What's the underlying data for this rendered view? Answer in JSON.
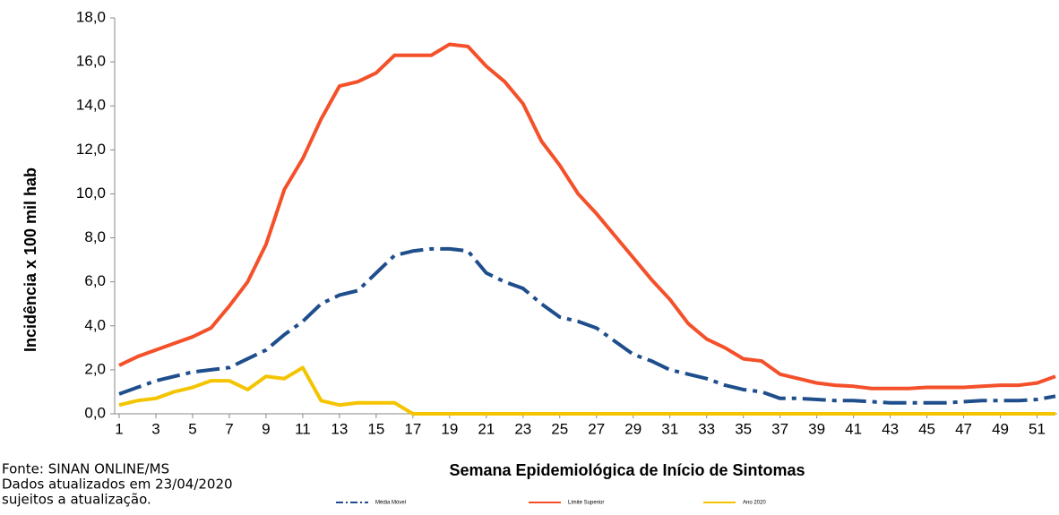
{
  "chart_data": {
    "type": "line",
    "x_label": "Semana Epidemiológica de Início de Sintomas",
    "y_label": "Incidência x 100 mil hab",
    "x": [
      1,
      2,
      3,
      4,
      5,
      6,
      7,
      8,
      9,
      10,
      11,
      12,
      13,
      14,
      15,
      16,
      17,
      18,
      19,
      20,
      21,
      22,
      23,
      24,
      25,
      26,
      27,
      28,
      29,
      30,
      31,
      32,
      33,
      34,
      35,
      36,
      37,
      38,
      39,
      40,
      41,
      42,
      43,
      44,
      45,
      46,
      47,
      48,
      49,
      50,
      51,
      52
    ],
    "xlim": [
      1,
      52
    ],
    "xticks": [
      1,
      3,
      5,
      7,
      9,
      11,
      13,
      15,
      17,
      19,
      21,
      23,
      25,
      27,
      29,
      31,
      33,
      35,
      37,
      39,
      41,
      43,
      45,
      47,
      49,
      51
    ],
    "ylim": [
      0,
      18
    ],
    "yticks": [
      {
        "value": 0,
        "label": "0,0"
      },
      {
        "value": 2,
        "label": "2,0"
      },
      {
        "value": 4,
        "label": "4,0"
      },
      {
        "value": 6,
        "label": "6,0"
      },
      {
        "value": 8,
        "label": "8,0"
      },
      {
        "value": 10,
        "label": "10,0"
      },
      {
        "value": 12,
        "label": "12,0"
      },
      {
        "value": 14,
        "label": "14,0"
      },
      {
        "value": 16,
        "label": "16,0"
      },
      {
        "value": 18,
        "label": "18,0"
      }
    ],
    "grid": false,
    "series": [
      {
        "name": "Média Móvel",
        "color": "#1f4e8c",
        "dashed": true,
        "values": [
          0.9,
          1.2,
          1.5,
          1.7,
          1.9,
          2.0,
          2.1,
          2.5,
          2.9,
          3.6,
          4.2,
          5.0,
          5.4,
          5.6,
          6.4,
          7.2,
          7.4,
          7.5,
          7.5,
          7.4,
          6.4,
          6.0,
          5.7,
          5.0,
          4.4,
          4.2,
          3.9,
          3.3,
          2.7,
          2.4,
          2.0,
          1.8,
          1.6,
          1.3,
          1.1,
          1.0,
          0.7,
          0.7,
          0.65,
          0.6,
          0.6,
          0.55,
          0.5,
          0.5,
          0.5,
          0.5,
          0.55,
          0.6,
          0.6,
          0.6,
          0.65,
          0.8
        ]
      },
      {
        "name": "Limite Superior",
        "color": "#f4502a",
        "dashed": false,
        "values": [
          2.2,
          2.6,
          2.9,
          3.2,
          3.5,
          3.9,
          4.9,
          6.0,
          7.7,
          10.2,
          11.6,
          13.4,
          14.9,
          15.1,
          15.5,
          16.3,
          16.3,
          16.3,
          16.8,
          16.7,
          15.8,
          15.1,
          14.1,
          12.4,
          11.3,
          10.0,
          9.1,
          8.1,
          7.1,
          6.1,
          5.2,
          4.1,
          3.4,
          3.0,
          2.5,
          2.4,
          1.8,
          1.6,
          1.4,
          1.3,
          1.25,
          1.15,
          1.15,
          1.15,
          1.2,
          1.2,
          1.2,
          1.25,
          1.3,
          1.3,
          1.4,
          1.7
        ]
      },
      {
        "name": "Ano 2020",
        "color": "#f5c400",
        "dashed": false,
        "values": [
          0.4,
          0.6,
          0.7,
          1.0,
          1.2,
          1.5,
          1.5,
          1.1,
          1.7,
          1.6,
          2.1,
          0.6,
          0.4,
          0.5,
          0.5,
          0.5,
          0,
          0,
          0,
          0,
          0,
          0,
          0,
          0,
          0,
          0,
          0,
          0,
          0,
          0,
          0,
          0,
          0,
          0,
          0,
          0,
          0,
          0,
          0,
          0,
          0,
          0,
          0,
          0,
          0,
          0,
          0,
          0,
          0,
          0,
          0,
          0
        ]
      }
    ],
    "notes": [
      "Fonte: SINAN ONLINE/MS",
      "Dados atualizados em 23/04/2020",
      "sujeitos a atualização."
    ]
  }
}
